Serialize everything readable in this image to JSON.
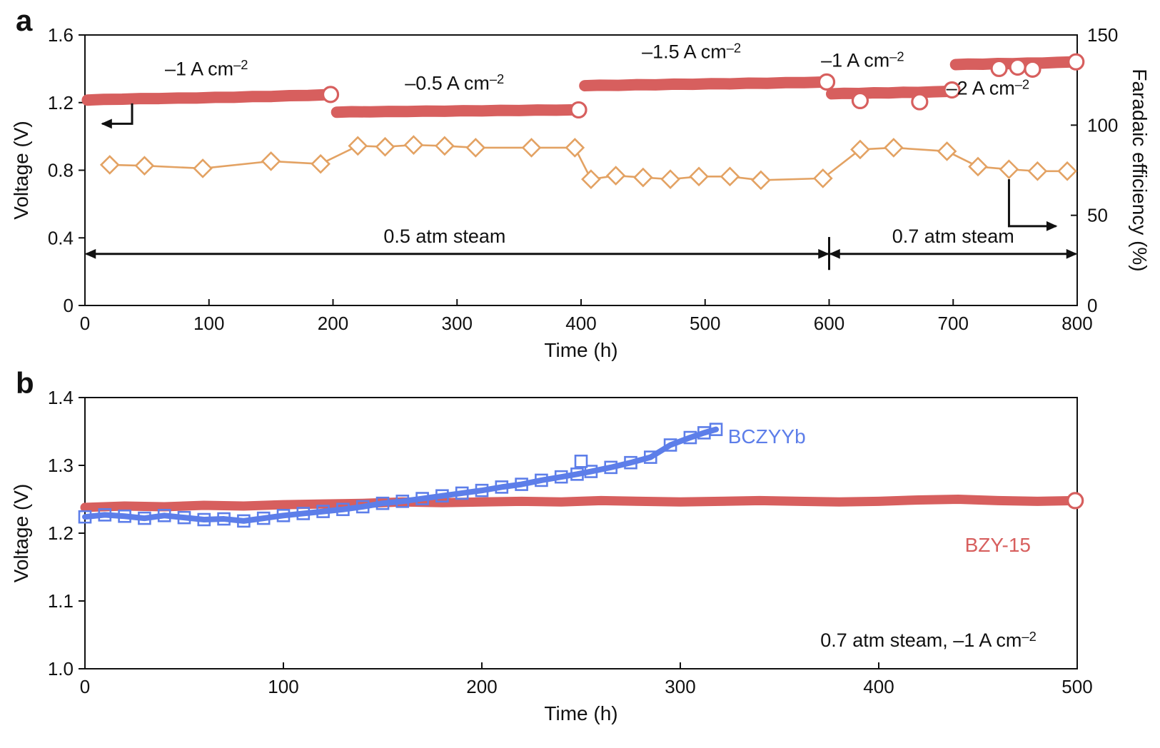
{
  "colors": {
    "red": "#d75f5e",
    "orange": "#e3a263",
    "blue": "#5d7ee9",
    "black": "#111111"
  },
  "chart_data": [
    {
      "type": "line",
      "panel": "a",
      "panel_letter": "a",
      "xlabel": "Time (h)",
      "ylabel": "Voltage (V)",
      "ylabel_right": "Faradaic efficiency (%)",
      "xlim": [
        0,
        800
      ],
      "ylim": [
        0,
        1.6
      ],
      "ylim_right": [
        0,
        150
      ],
      "xticks": [
        0,
        100,
        200,
        300,
        400,
        500,
        600,
        700,
        800
      ],
      "xtick_labels": [
        "0",
        "100",
        "200",
        "300",
        "400",
        "500",
        "600",
        "700",
        "800"
      ],
      "yticks": [
        0,
        0.4,
        0.8,
        1.2,
        1.6
      ],
      "ytick_labels": [
        "0",
        "0.4",
        "0.8",
        "1.2",
        "1.6"
      ],
      "yticks_right": [
        0,
        50,
        100,
        150
      ],
      "ytick_labels_right": [
        "0",
        "50",
        "100",
        "150"
      ],
      "grid": false,
      "series": [
        {
          "name": "voltage-segment-1",
          "current": "–1 A cm⁻²",
          "axis": "left",
          "style": "band",
          "width": 16,
          "color": "#d75f5e",
          "points": [
            [
              2,
              1.215
            ],
            [
              15,
              1.219
            ],
            [
              30,
              1.22
            ],
            [
              45,
              1.224
            ],
            [
              60,
              1.224
            ],
            [
              75,
              1.227
            ],
            [
              90,
              1.227
            ],
            [
              105,
              1.231
            ],
            [
              120,
              1.231
            ],
            [
              135,
              1.236
            ],
            [
              150,
              1.236
            ],
            [
              165,
              1.241
            ],
            [
              180,
              1.242
            ],
            [
              192,
              1.246
            ],
            [
              197,
              1.247
            ]
          ]
        },
        {
          "name": "voltage-segment-2",
          "current": "–0.5 A cm⁻²",
          "axis": "left",
          "style": "band",
          "width": 16,
          "color": "#d75f5e",
          "points": [
            [
              203,
              1.143
            ],
            [
              215,
              1.146
            ],
            [
              230,
              1.145
            ],
            [
              245,
              1.148
            ],
            [
              260,
              1.147
            ],
            [
              275,
              1.15
            ],
            [
              290,
              1.149
            ],
            [
              305,
              1.152
            ],
            [
              320,
              1.151
            ],
            [
              335,
              1.154
            ],
            [
              350,
              1.153
            ],
            [
              365,
              1.156
            ],
            [
              380,
              1.155
            ],
            [
              392,
              1.157
            ],
            [
              398,
              1.158
            ]
          ]
        },
        {
          "name": "voltage-segment-3",
          "current": "–1.5 A cm⁻²",
          "axis": "left",
          "style": "band",
          "width": 16,
          "color": "#d75f5e",
          "points": [
            [
              403,
              1.3
            ],
            [
              415,
              1.303
            ],
            [
              430,
              1.302
            ],
            [
              445,
              1.306
            ],
            [
              460,
              1.305
            ],
            [
              475,
              1.309
            ],
            [
              490,
              1.308
            ],
            [
              505,
              1.312
            ],
            [
              520,
              1.311
            ],
            [
              535,
              1.315
            ],
            [
              550,
              1.314
            ],
            [
              565,
              1.318
            ],
            [
              580,
              1.318
            ],
            [
              592,
              1.321
            ],
            [
              598,
              1.322
            ]
          ]
        },
        {
          "name": "voltage-segment-4",
          "current": "–1 A cm⁻²",
          "axis": "left",
          "style": "band",
          "width": 16,
          "color": "#d75f5e",
          "points": [
            [
              602,
              1.252
            ],
            [
              612,
              1.255
            ],
            [
              624,
              1.254
            ],
            [
              636,
              1.258
            ],
            [
              648,
              1.257
            ],
            [
              660,
              1.261
            ],
            [
              672,
              1.26
            ],
            [
              684,
              1.264
            ],
            [
              694,
              1.266
            ],
            [
              698,
              1.267
            ]
          ]
        },
        {
          "name": "voltage-segment-5",
          "current": "–2 A cm⁻²",
          "axis": "left",
          "style": "band",
          "width": 16,
          "color": "#d75f5e",
          "points": [
            [
              702,
              1.425
            ],
            [
              712,
              1.428
            ],
            [
              724,
              1.427
            ],
            [
              736,
              1.431
            ],
            [
              748,
              1.43
            ],
            [
              760,
              1.434
            ],
            [
              772,
              1.434
            ],
            [
              784,
              1.438
            ],
            [
              794,
              1.44
            ],
            [
              799,
              1.441
            ]
          ]
        },
        {
          "name": "segment-end-markers",
          "axis": "left",
          "style": "open-circles",
          "color": "#d75f5e",
          "points": [
            [
              198,
              1.248
            ],
            [
              398,
              1.157
            ],
            [
              598,
              1.322
            ],
            [
              699,
              1.275
            ],
            [
              799,
              1.441
            ],
            [
              625,
              1.212
            ],
            [
              673,
              1.205
            ],
            [
              737,
              1.402
            ],
            [
              752,
              1.41
            ],
            [
              764,
              1.398
            ]
          ]
        },
        {
          "name": "faradaic-efficiency",
          "axis": "right",
          "style": "diamond-line",
          "color": "#e3a263",
          "points": [
            [
              20,
              78
            ],
            [
              48,
              77.5
            ],
            [
              95,
              76
            ],
            [
              150,
              80
            ],
            [
              190,
              78.5
            ],
            [
              220,
              88.5
            ],
            [
              242,
              88
            ],
            [
              265,
              89
            ],
            [
              290,
              88.5
            ],
            [
              315,
              87.5
            ],
            [
              360,
              87.5
            ],
            [
              395,
              87.5
            ],
            [
              408,
              70
            ],
            [
              428,
              72
            ],
            [
              450,
              71
            ],
            [
              472,
              70
            ],
            [
              495,
              71.5
            ],
            [
              520,
              71.5
            ],
            [
              545,
              69.5
            ],
            [
              595,
              70.5
            ],
            [
              625,
              86.5
            ],
            [
              652,
              87.5
            ],
            [
              695,
              85.5
            ],
            [
              720,
              77
            ],
            [
              745,
              75.5
            ],
            [
              768,
              74.5
            ],
            [
              792,
              74.5
            ]
          ]
        }
      ],
      "annotations": [
        {
          "type": "text",
          "name": "current-label-1",
          "x": 98,
          "y": 1.4,
          "axis": "left",
          "text": "–1 A cm^{–2}",
          "color": "#111111",
          "size": 27,
          "anchor": "middle"
        },
        {
          "type": "text",
          "name": "current-label-2",
          "x": 298,
          "y": 1.315,
          "axis": "left",
          "text": "–0.5 A cm^{–2}",
          "color": "#111111",
          "size": 27,
          "anchor": "middle"
        },
        {
          "type": "text",
          "name": "current-label-3",
          "x": 489,
          "y": 1.5,
          "axis": "left",
          "text": "–1.5 A cm^{–2}",
          "color": "#111111",
          "size": 27,
          "anchor": "middle"
        },
        {
          "type": "text",
          "name": "current-label-4",
          "x": 627,
          "y": 1.45,
          "axis": "left",
          "text": "–1 A cm^{–2}",
          "color": "#111111",
          "size": 27,
          "anchor": "middle"
        },
        {
          "type": "text",
          "name": "current-label-5",
          "x": 728,
          "y": 1.285,
          "axis": "left",
          "text": "–2 A cm^{–2}",
          "color": "#111111",
          "size": 27,
          "anchor": "middle"
        },
        {
          "type": "text",
          "name": "steam-label-1",
          "x": 290,
          "y": 0.41,
          "axis": "left",
          "text": "0.5 atm steam",
          "color": "#111111",
          "size": 27,
          "anchor": "middle"
        },
        {
          "type": "text",
          "name": "steam-label-2",
          "x": 700,
          "y": 0.41,
          "axis": "left",
          "text": "0.7 atm steam",
          "color": "#111111",
          "size": 27,
          "anchor": "middle"
        },
        {
          "type": "double-arrow",
          "name": "steam-range-1",
          "y": 0.305,
          "x1": 1,
          "x2": 599,
          "axis": "left"
        },
        {
          "type": "double-arrow",
          "name": "steam-range-2",
          "y": 0.305,
          "x1": 601,
          "x2": 799,
          "axis": "left"
        },
        {
          "type": "vline",
          "name": "steam-divider",
          "x": 600,
          "y1": 0.21,
          "y2": 0.405,
          "axis": "left"
        },
        {
          "type": "elbow-arrow",
          "name": "left-axis-pointer",
          "axis": "left",
          "points": [
            [
              38,
              1.195
            ],
            [
              38,
              1.075
            ],
            [
              14,
              1.075
            ]
          ]
        },
        {
          "type": "elbow-arrow",
          "name": "right-axis-pointer",
          "axis": "right",
          "points": [
            [
              745,
              70
            ],
            [
              745,
              44
            ],
            [
              783,
              44
            ]
          ]
        }
      ]
    },
    {
      "type": "scatter",
      "panel": "b",
      "panel_letter": "b",
      "xlabel": "Time (h)",
      "ylabel": "Voltage (V)",
      "xlim": [
        0,
        500
      ],
      "ylim": [
        1.0,
        1.4
      ],
      "xticks": [
        0,
        100,
        200,
        300,
        400,
        500
      ],
      "xtick_labels": [
        "0",
        "100",
        "200",
        "300",
        "400",
        "500"
      ],
      "yticks": [
        1.0,
        1.1,
        1.2,
        1.3,
        1.4
      ],
      "ytick_labels": [
        "1.0",
        "1.1",
        "1.2",
        "1.3",
        "1.4"
      ],
      "grid": false,
      "series": [
        {
          "name": "BZY-15",
          "axis": "left",
          "style": "band",
          "width": 13,
          "color": "#d75f5e",
          "points": [
            [
              0,
              1.238
            ],
            [
              20,
              1.24
            ],
            [
              40,
              1.239
            ],
            [
              60,
              1.241
            ],
            [
              80,
              1.24
            ],
            [
              100,
              1.242
            ],
            [
              120,
              1.243
            ],
            [
              140,
              1.244
            ],
            [
              160,
              1.246
            ],
            [
              180,
              1.245
            ],
            [
              200,
              1.246
            ],
            [
              220,
              1.247
            ],
            [
              240,
              1.246
            ],
            [
              260,
              1.248
            ],
            [
              280,
              1.247
            ],
            [
              300,
              1.246
            ],
            [
              320,
              1.247
            ],
            [
              340,
              1.248
            ],
            [
              360,
              1.247
            ],
            [
              380,
              1.246
            ],
            [
              400,
              1.247
            ],
            [
              420,
              1.249
            ],
            [
              440,
              1.25
            ],
            [
              460,
              1.248
            ],
            [
              480,
              1.247
            ],
            [
              499,
              1.248
            ]
          ]
        },
        {
          "name": "BZY-15-end-marker",
          "axis": "left",
          "style": "open-circles",
          "color": "#d75f5e",
          "points": [
            [
              499,
              1.248
            ]
          ]
        },
        {
          "name": "BCZYYb",
          "axis": "left",
          "style": "square-line",
          "width": 8,
          "color": "#5d7ee9",
          "points": [
            [
              0,
              1.224
            ],
            [
              10,
              1.227
            ],
            [
              20,
              1.225
            ],
            [
              30,
              1.222
            ],
            [
              40,
              1.226
            ],
            [
              50,
              1.223
            ],
            [
              60,
              1.22
            ],
            [
              70,
              1.221
            ],
            [
              80,
              1.218
            ],
            [
              90,
              1.222
            ],
            [
              100,
              1.226
            ],
            [
              110,
              1.229
            ],
            [
              120,
              1.232
            ],
            [
              130,
              1.235
            ],
            [
              140,
              1.239
            ],
            [
              150,
              1.244
            ],
            [
              160,
              1.247
            ],
            [
              170,
              1.251
            ],
            [
              180,
              1.255
            ],
            [
              190,
              1.259
            ],
            [
              200,
              1.263
            ],
            [
              210,
              1.268
            ],
            [
              220,
              1.272
            ],
            [
              230,
              1.278
            ],
            [
              240,
              1.283
            ],
            [
              248,
              1.287
            ],
            [
              255,
              1.291
            ],
            [
              265,
              1.297
            ],
            [
              275,
              1.304
            ],
            [
              285,
              1.312
            ],
            [
              295,
              1.33
            ],
            [
              305,
              1.341
            ],
            [
              312,
              1.348
            ],
            [
              318,
              1.353
            ]
          ]
        },
        {
          "name": "BCZYYb-outlier",
          "axis": "left",
          "style": "open-squares",
          "color": "#5d7ee9",
          "points": [
            [
              250,
              1.306
            ]
          ]
        }
      ],
      "annotations": [
        {
          "type": "text",
          "name": "bczyyb-label",
          "x": 324,
          "y": 1.342,
          "axis": "left",
          "text": "BCZYYb",
          "color": "#5d7ee9",
          "size": 28,
          "anchor": "start"
        },
        {
          "type": "text",
          "name": "bzy15-label",
          "x": 460,
          "y": 1.182,
          "axis": "left",
          "text": "BZY-15",
          "color": "#d75f5e",
          "size": 28,
          "anchor": "middle"
        },
        {
          "type": "text",
          "name": "condition-label",
          "x": 425,
          "y": 1.042,
          "axis": "left",
          "text": "0.7 atm steam, –1 A cm^{–2}",
          "color": "#111111",
          "size": 27,
          "anchor": "middle"
        }
      ]
    }
  ]
}
